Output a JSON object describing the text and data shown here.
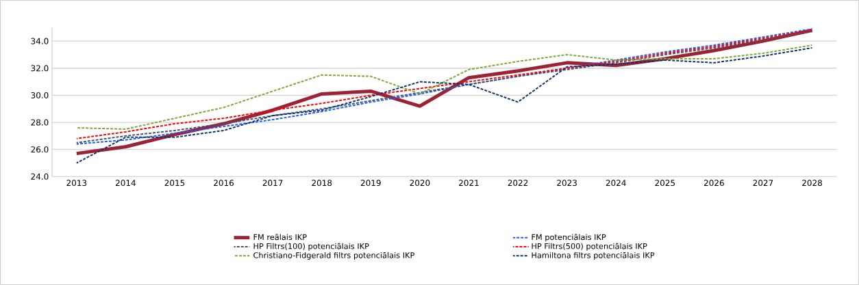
{
  "chart_data": {
    "type": "line",
    "categories": [
      "2013",
      "2014",
      "2015",
      "2016",
      "2017",
      "2018",
      "2019",
      "2020",
      "2021",
      "2022",
      "2023",
      "2024",
      "2025",
      "2026",
      "2027",
      "2028"
    ],
    "ylim": [
      24,
      35
    ],
    "yticks": [
      {
        "value": 24,
        "label": "24.0"
      },
      {
        "value": 26,
        "label": "26.0"
      },
      {
        "value": 28,
        "label": "28.0"
      },
      {
        "value": 30,
        "label": "30.0"
      },
      {
        "value": 32,
        "label": "32.0"
      },
      {
        "value": 34,
        "label": "34.0"
      }
    ],
    "grid": "y",
    "legend": "bottom",
    "marker": "none",
    "series": [
      {
        "name": "FM reālais IKP",
        "color": "#9b2335",
        "line_style": "solid",
        "values": [
          25.7,
          26.2,
          27.1,
          27.9,
          28.9,
          30.1,
          30.3,
          29.2,
          31.3,
          31.8,
          32.4,
          32.2,
          32.7,
          33.3,
          34.0,
          34.8
        ]
      },
      {
        "name": "FM  potenciālais IKP",
        "color": "#1f5cff",
        "line_style": "dashed",
        "values": [
          26.4,
          26.7,
          27.2,
          27.7,
          28.2,
          28.8,
          29.5,
          30.1,
          30.8,
          31.4,
          32.0,
          32.6,
          33.2,
          33.7,
          34.3,
          34.9
        ]
      },
      {
        "name": "HP Filtrs(100) potenciālais IKP",
        "color": "#44546a",
        "line_style": "dashed",
        "values": [
          26.5,
          27.0,
          27.4,
          27.9,
          28.5,
          29.0,
          29.6,
          30.2,
          30.8,
          31.4,
          31.9,
          32.4,
          33.0,
          33.5,
          34.1,
          34.7
        ]
      },
      {
        "name": "HP Filtrs(500) potenciālais IKP",
        "color": "#ff0000",
        "line_style": "dashed",
        "values": [
          26.8,
          27.3,
          27.9,
          28.3,
          28.9,
          29.4,
          30.0,
          30.5,
          31.0,
          31.5,
          32.0,
          32.5,
          33.1,
          33.6,
          34.2,
          34.8
        ]
      },
      {
        "name": "Christiano-Fidgerald filtrs potenciālais IKP",
        "color": "#7fa83a",
        "line_style": "dashed",
        "values": [
          27.6,
          27.5,
          28.3,
          29.1,
          30.3,
          31.5,
          31.4,
          30.1,
          31.9,
          32.5,
          33.0,
          32.6,
          32.7,
          32.7,
          33.1,
          33.7
        ]
      },
      {
        "name": "Hamiltona filtrs potenciālais IKP",
        "color": "#0e3470",
        "line_style": "dashed",
        "values": [
          25.0,
          26.9,
          26.9,
          27.4,
          28.5,
          28.9,
          29.9,
          31.0,
          30.8,
          29.5,
          32.1,
          32.3,
          32.6,
          32.4,
          32.9,
          33.5
        ]
      }
    ]
  }
}
